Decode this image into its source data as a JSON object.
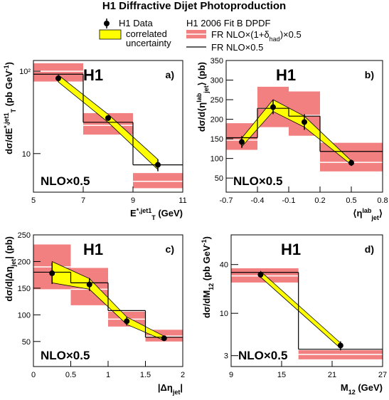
{
  "title": "H1 Diffractive Dijet Photoproduction",
  "legend": {
    "data": {
      "label": "H1 Data",
      "color": "#000000"
    },
    "corr": {
      "label": [
        "correlated",
        "uncertainty"
      ],
      "color": "#ffff00"
    },
    "fit": {
      "label": "H1 2006 Fit B DPDF"
    },
    "nlo_had": {
      "label": [
        {
          "t": "FR NLO×(1+δ"
        },
        {
          "t": "had",
          "s": "sub"
        },
        {
          "t": ")×0.5"
        }
      ],
      "color": "#f28080"
    },
    "nlo": {
      "label": "FR NLO×0.5",
      "color": "#000000"
    }
  },
  "chart_data": [
    {
      "type": "histogram",
      "experiment": "H1",
      "panel_label": "a)",
      "annotation": "NLO×0.5",
      "xlabel": [
        {
          "t": "E"
        },
        {
          "t": "*,jet1",
          "s": "sup"
        },
        {
          "t": "T",
          "s": "sub"
        },
        {
          "t": " (GeV)"
        }
      ],
      "ylabel": [
        {
          "t": "dσ/dE"
        },
        {
          "t": "*,jet1",
          "s": "sup"
        },
        {
          "t": "T",
          "s": "sub"
        },
        {
          "t": " (pb GeV"
        },
        {
          "t": "-1",
          "s": "sup"
        },
        {
          "t": ")"
        }
      ],
      "xlim": [
        5,
        11
      ],
      "xticks": [
        5,
        7,
        9,
        11
      ],
      "ylim": [
        3.4,
        135
      ],
      "log_y": true,
      "yticks": [
        10,
        {
          "value": 100,
          "label": "10²"
        }
      ],
      "bins": [
        5,
        7,
        9,
        11
      ],
      "nlo_values": [
        92,
        24,
        7.3
      ],
      "nlo_had_values": [
        100,
        22,
        4.6
      ],
      "nlo_had_lower": [
        75,
        17,
        3.8
      ],
      "nlo_had_upper": [
        125,
        31,
        5.8
      ],
      "x": [
        6,
        8,
        10
      ],
      "values": [
        82,
        27,
        7.3
      ],
      "errors": [
        7,
        2,
        1.2
      ],
      "corr_lower": [
        74,
        24,
        6.4
      ],
      "corr_upper": [
        90,
        30,
        8.5
      ]
    },
    {
      "type": "histogram",
      "experiment": "H1",
      "panel_label": "b)",
      "annotation": "NLO×0.5",
      "xlabel": [
        {
          "t": "⟨η"
        },
        {
          "t": "lab",
          "s": "sup"
        },
        {
          "t": "jet",
          "s": "sub"
        },
        {
          "t": "⟩"
        }
      ],
      "ylabel": [
        {
          "t": "dσ/d⟨η"
        },
        {
          "t": "lab",
          "s": "sup"
        },
        {
          "t": "jet",
          "s": "sub"
        },
        {
          "t": "⟩ (pb)"
        }
      ],
      "xlim": [
        -0.7,
        0.8
      ],
      "xticks": [
        -0.7,
        -0.4,
        -0.1,
        0.2,
        0.5,
        0.8
      ],
      "ylim": [
        14,
        350
      ],
      "log_y": false,
      "yticks": [
        50,
        100,
        150,
        200,
        250,
        300,
        350
      ],
      "bins": [
        -0.7,
        -0.4,
        -0.1,
        0.2,
        0.8
      ],
      "nlo_values": [
        153,
        228,
        208,
        118
      ],
      "nlo_had_values": [
        147,
        228,
        210,
        90
      ],
      "nlo_had_lower": [
        122,
        180,
        158,
        67
      ],
      "nlo_had_upper": [
        190,
        283,
        271,
        140
      ],
      "x": [
        -0.55,
        -0.25,
        0.05,
        0.5
      ],
      "values": [
        142,
        231,
        193,
        89
      ],
      "errors": [
        15,
        18,
        20,
        8
      ],
      "corr_lower": [
        130,
        220,
        180,
        84
      ],
      "corr_upper": [
        152,
        250,
        208,
        94
      ]
    },
    {
      "type": "histogram",
      "experiment": "H1",
      "panel_label": "c)",
      "annotation": "NLO×0.5",
      "xlabel": [
        {
          "t": "|Δη"
        },
        {
          "t": "jet",
          "s": "sub"
        },
        {
          "t": "|"
        }
      ],
      "ylabel": [
        {
          "t": "dσ/d|Δη"
        },
        {
          "t": "jet",
          "s": "sub"
        },
        {
          "t": "| (pb)"
        }
      ],
      "xlim": [
        0,
        2
      ],
      "xticks": [
        0,
        0.5,
        1,
        1.5,
        2
      ],
      "ylim": [
        3,
        250
      ],
      "log_y": false,
      "yticks": [
        50,
        100,
        150,
        200,
        250
      ],
      "bins": [
        0,
        0.5,
        1,
        1.5,
        2
      ],
      "nlo_values": [
        180,
        160,
        108,
        58
      ],
      "nlo_had_values": [
        190,
        148,
        92,
        60
      ],
      "nlo_had_lower": [
        148,
        118,
        78,
        50
      ],
      "nlo_had_upper": [
        232,
        188,
        106,
        72
      ],
      "x": [
        0.25,
        0.75,
        1.25,
        1.75
      ],
      "values": [
        178,
        157,
        88,
        56
      ],
      "errors": [
        20,
        12,
        8,
        5
      ],
      "corr_lower": [
        160,
        148,
        82,
        52
      ],
      "corr_upper": [
        200,
        168,
        96,
        60
      ]
    },
    {
      "type": "histogram",
      "experiment": "H1",
      "panel_label": "d)",
      "annotation": "NLO×0.5",
      "xlabel": [
        {
          "t": "M"
        },
        {
          "t": "12",
          "s": "sub"
        },
        {
          "t": " (GeV)"
        }
      ],
      "ylabel": [
        {
          "t": "dσ/dM"
        },
        {
          "t": "12",
          "s": "sub"
        },
        {
          "t": " (pb GeV"
        },
        {
          "t": "-1",
          "s": "sup"
        },
        {
          "t": ")"
        }
      ],
      "xlim": [
        9,
        27
      ],
      "xticks": [
        9,
        15,
        21,
        27
      ],
      "ylim": [
        2.2,
        93
      ],
      "log_y": true,
      "yticks": [
        3,
        10,
        40
      ],
      "bins": [
        9,
        17,
        27
      ],
      "nlo_values": [
        32,
        3.6
      ],
      "nlo_had_values": [
        29,
        3.1
      ],
      "nlo_had_lower": [
        24,
        2.7
      ],
      "nlo_had_upper": [
        36,
        3.5
      ],
      "x": [
        12.5,
        22
      ],
      "values": [
        30,
        4.0
      ],
      "errors": [
        2.5,
        0.5
      ],
      "corr_lower": [
        28,
        3.7
      ],
      "corr_upper": [
        33,
        4.3
      ]
    }
  ]
}
